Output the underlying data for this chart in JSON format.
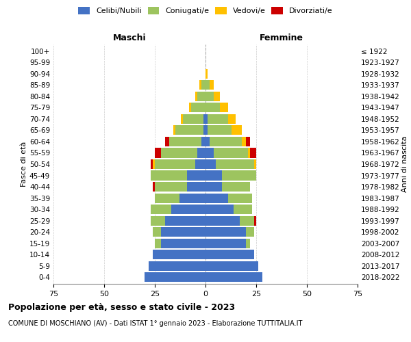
{
  "age_groups": [
    "0-4",
    "5-9",
    "10-14",
    "15-19",
    "20-24",
    "25-29",
    "30-34",
    "35-39",
    "40-44",
    "45-49",
    "50-54",
    "55-59",
    "60-64",
    "65-69",
    "70-74",
    "75-79",
    "80-84",
    "85-89",
    "90-94",
    "95-99",
    "100+"
  ],
  "birth_years": [
    "2018-2022",
    "2013-2017",
    "2008-2012",
    "2003-2007",
    "1998-2002",
    "1993-1997",
    "1988-1992",
    "1983-1987",
    "1978-1982",
    "1973-1977",
    "1968-1972",
    "1963-1967",
    "1958-1962",
    "1953-1957",
    "1948-1952",
    "1943-1947",
    "1938-1942",
    "1933-1937",
    "1928-1932",
    "1923-1927",
    "≤ 1922"
  ],
  "maschi": {
    "celibi": [
      30,
      28,
      26,
      22,
      22,
      20,
      17,
      13,
      9,
      9,
      5,
      4,
      2,
      1,
      1,
      0,
      0,
      0,
      0,
      0,
      0
    ],
    "coniugati": [
      0,
      0,
      0,
      3,
      4,
      7,
      10,
      12,
      16,
      18,
      20,
      18,
      16,
      14,
      10,
      7,
      4,
      2,
      0,
      0,
      0
    ],
    "vedovi": [
      0,
      0,
      0,
      0,
      0,
      0,
      0,
      0,
      0,
      0,
      1,
      0,
      0,
      1,
      1,
      1,
      1,
      1,
      0,
      0,
      0
    ],
    "divorziati": [
      0,
      0,
      0,
      0,
      0,
      0,
      0,
      0,
      1,
      0,
      1,
      3,
      2,
      0,
      0,
      0,
      0,
      0,
      0,
      0,
      0
    ]
  },
  "femmine": {
    "nubili": [
      28,
      26,
      24,
      20,
      20,
      17,
      14,
      11,
      8,
      8,
      5,
      4,
      2,
      1,
      1,
      0,
      0,
      0,
      0,
      0,
      0
    ],
    "coniugate": [
      0,
      0,
      0,
      2,
      4,
      7,
      9,
      12,
      14,
      17,
      19,
      17,
      16,
      12,
      10,
      7,
      4,
      2,
      0,
      0,
      0
    ],
    "vedove": [
      0,
      0,
      0,
      0,
      0,
      0,
      0,
      0,
      0,
      0,
      1,
      1,
      2,
      5,
      4,
      4,
      3,
      2,
      1,
      0,
      0
    ],
    "divorziate": [
      0,
      0,
      0,
      0,
      0,
      1,
      0,
      0,
      0,
      0,
      0,
      3,
      2,
      0,
      0,
      0,
      0,
      0,
      0,
      0,
      0
    ]
  },
  "colors": {
    "celibi": "#4472c4",
    "coniugati": "#9dc45f",
    "vedovi": "#ffc000",
    "divorziati": "#cc0000"
  },
  "title": "Popolazione per età, sesso e stato civile - 2023",
  "subtitle": "COMUNE DI MOSCHIANO (AV) - Dati ISTAT 1° gennaio 2023 - Elaborazione TUTTITALIA.IT",
  "xlabel_left": "Maschi",
  "xlabel_right": "Femmine",
  "ylabel_left": "Fasce di età",
  "ylabel_right": "Anni di nascita",
  "xlim": 75,
  "background_color": "#ffffff"
}
